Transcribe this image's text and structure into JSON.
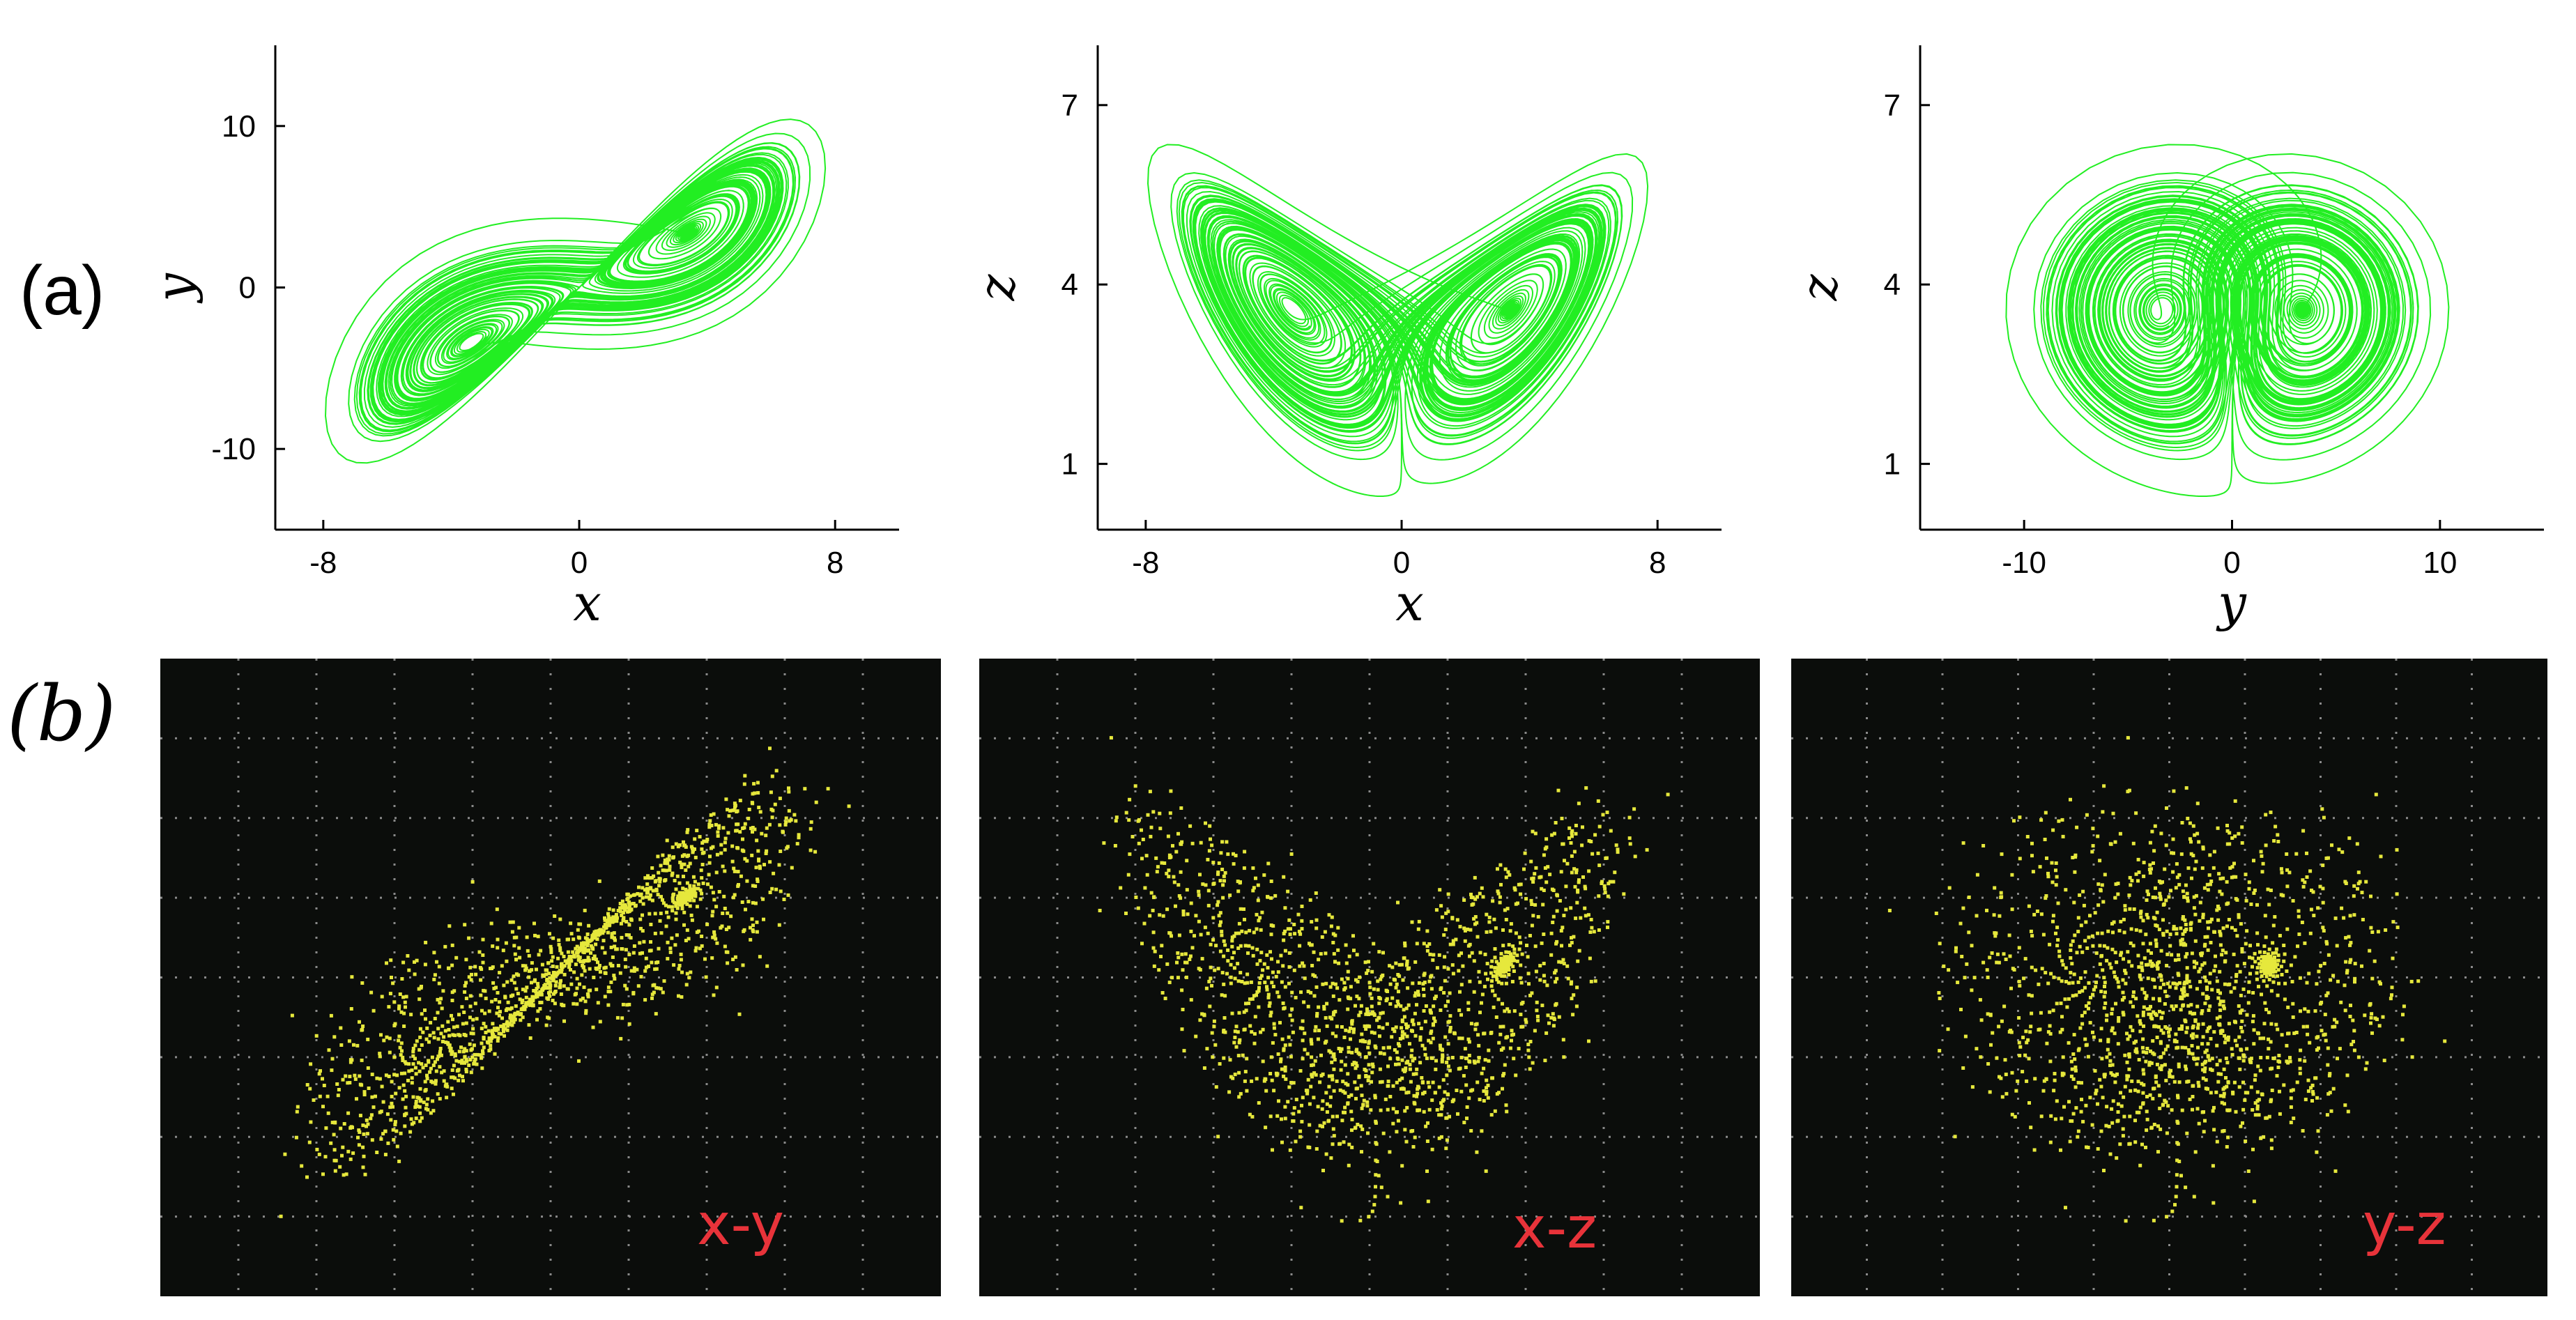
{
  "figure": {
    "label_a": "(a)",
    "label_b": "(b)"
  },
  "chart_data": [
    {
      "type": "line",
      "panel": "(a) x-y",
      "xlabel": "x",
      "ylabel": "y",
      "xticks": [
        -8,
        0,
        8
      ],
      "yticks": [
        -10,
        0,
        10
      ],
      "xlim": [
        -9.5,
        10
      ],
      "ylim": [
        -15,
        15
      ],
      "color": "#22ee22",
      "series": [
        {
          "projection": "x-y",
          "from": "Lorenz-type double-scroll attractor trajectory"
        }
      ]
    },
    {
      "type": "line",
      "panel": "(a) x-z",
      "xlabel": "x",
      "ylabel": "z",
      "xticks": [
        -8,
        0,
        8
      ],
      "yticks": [
        1,
        4,
        7
      ],
      "xlim": [
        -9.5,
        10
      ],
      "ylim": [
        -0.1,
        8
      ],
      "color": "#22ee22",
      "series": [
        {
          "projection": "x-z"
        }
      ]
    },
    {
      "type": "line",
      "panel": "(a) y-z",
      "xlabel": "y",
      "ylabel": "z",
      "xticks": [
        -10,
        0,
        10
      ],
      "yticks": [
        1,
        4,
        7
      ],
      "xlim": [
        -15,
        15
      ],
      "ylim": [
        -0.1,
        8
      ],
      "color": "#22ee22",
      "series": [
        {
          "projection": "y-z"
        }
      ]
    },
    {
      "type": "scatter",
      "panel": "(b) oscilloscope x-y",
      "tag": "x-y",
      "color": "#e6e83c"
    },
    {
      "type": "scatter",
      "panel": "(b) oscilloscope x-z",
      "tag": "x-z",
      "color": "#e6e83c"
    },
    {
      "type": "scatter",
      "panel": "(b) oscilloscope y-z",
      "tag": "y-z",
      "color": "#e6e83c"
    }
  ],
  "colors": {
    "trace": "#22ee22",
    "scope_dots": "#e6e83c",
    "scope_bg": "#0b0d0b",
    "tag": "#e8333a",
    "axis": "#000000"
  }
}
